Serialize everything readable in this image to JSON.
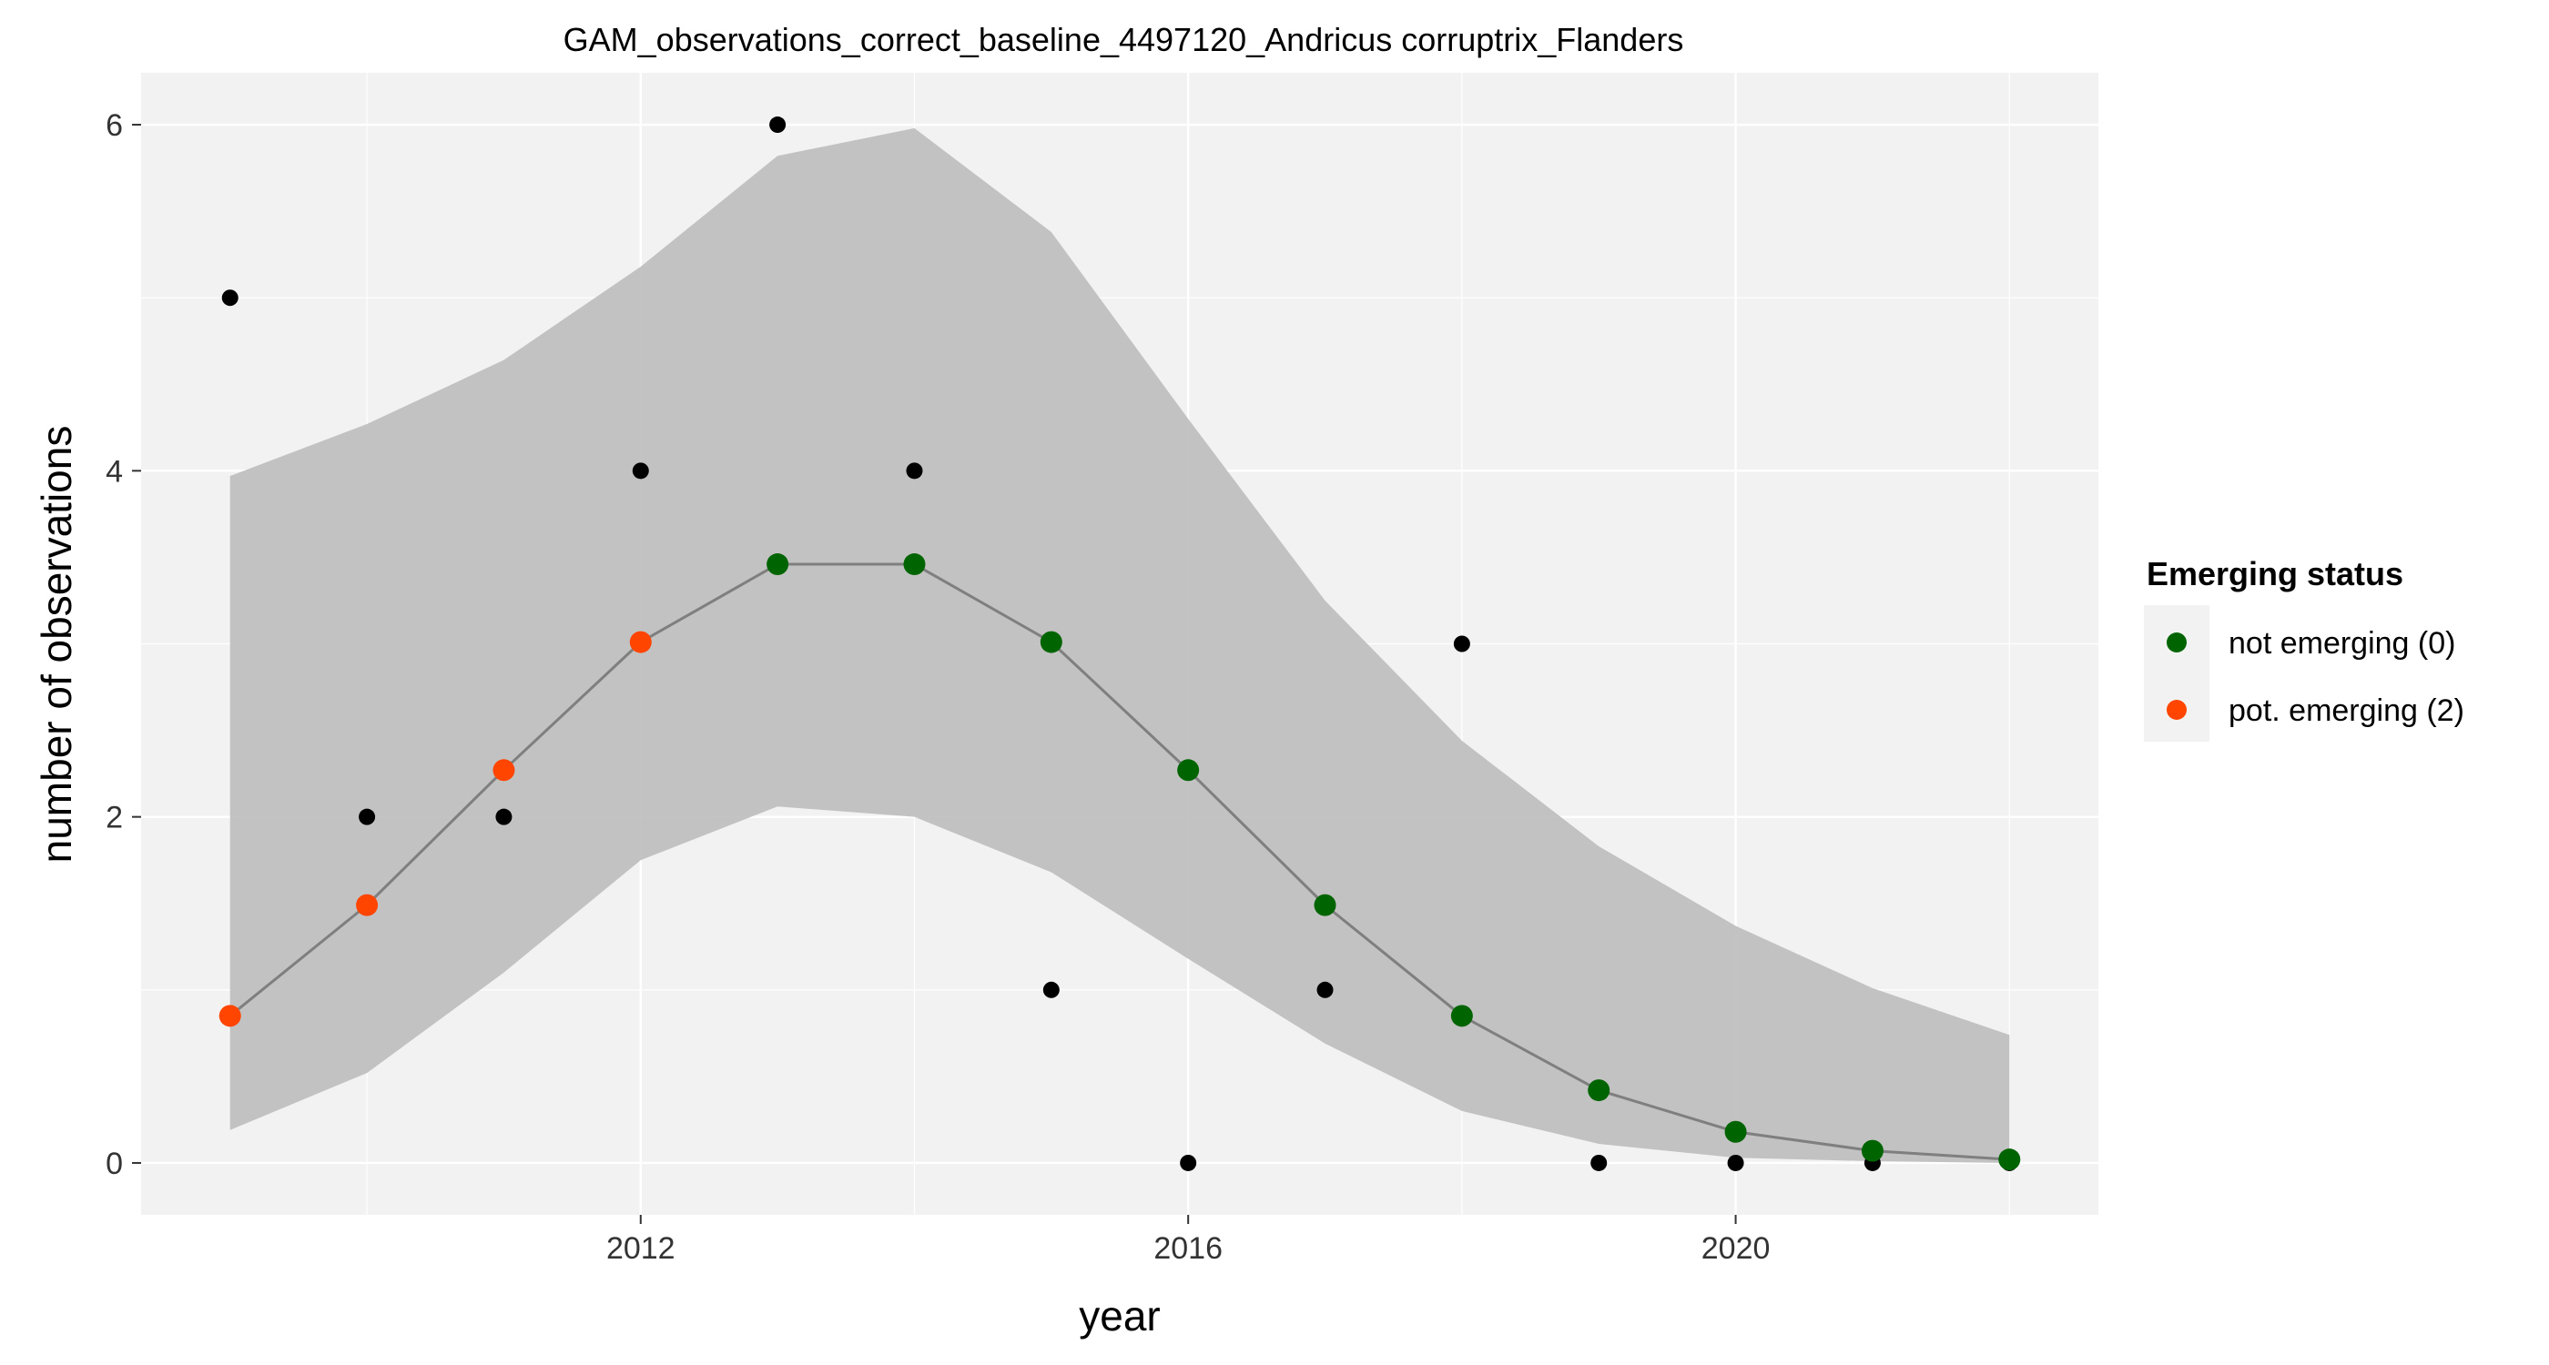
{
  "chart_data": {
    "type": "line",
    "title": "GAM_observations_correct_baseline_4497120_Andricus corruptrix_Flanders",
    "xlabel": "year",
    "ylabel": "number of observations",
    "xlim": [
      2008.35,
      2022.65
    ],
    "ylim": [
      -0.3,
      6.3
    ],
    "x_ticks": [
      2012,
      2016,
      2020
    ],
    "x_minor_ticks": [
      2010,
      2014,
      2018,
      2022
    ],
    "y_ticks": [
      0,
      2,
      4,
      6
    ],
    "y_minor_ticks": [
      1,
      3,
      5
    ],
    "grid": true,
    "legend": {
      "title": "Emerging status",
      "position": "right",
      "entries": [
        {
          "label": "not emerging (0)",
          "color": "#006400"
        },
        {
          "label": "pot. emerging (2)",
          "color": "#FF4500"
        }
      ]
    },
    "observed": {
      "x": [
        2009,
        2010,
        2011,
        2012,
        2013,
        2014,
        2015,
        2016,
        2017,
        2018,
        2019,
        2020,
        2021,
        2022
      ],
      "y": [
        5,
        2,
        2,
        4,
        6,
        4,
        1,
        0,
        1,
        3,
        0,
        0,
        0,
        0
      ]
    },
    "fit": {
      "x": [
        2009,
        2010,
        2011,
        2012,
        2013,
        2014,
        2015,
        2016,
        2017,
        2018,
        2019,
        2020,
        2021,
        2022
      ],
      "y": [
        0.85,
        1.49,
        2.27,
        3.01,
        3.46,
        3.46,
        3.01,
        2.27,
        1.49,
        0.85,
        0.42,
        0.18,
        0.07,
        0.02
      ],
      "lower": [
        0.19,
        0.52,
        1.1,
        1.75,
        2.06,
        2.0,
        1.68,
        1.18,
        0.69,
        0.3,
        0.11,
        0.03,
        0.01,
        0.0
      ],
      "upper": [
        3.97,
        4.27,
        4.64,
        5.18,
        5.82,
        5.98,
        5.38,
        4.3,
        3.25,
        2.44,
        1.83,
        1.37,
        1.01,
        0.74
      ],
      "status": [
        2,
        2,
        2,
        2,
        0,
        0,
        0,
        0,
        0,
        0,
        0,
        0,
        0,
        0
      ]
    },
    "colors": {
      "status_0": "#006400",
      "status_2": "#FF4500",
      "observed": "#000000",
      "line": "#7f7f7f",
      "ribbon": "#bdbdbd",
      "panel": "#f2f2f2",
      "grid": "#ffffff"
    }
  }
}
